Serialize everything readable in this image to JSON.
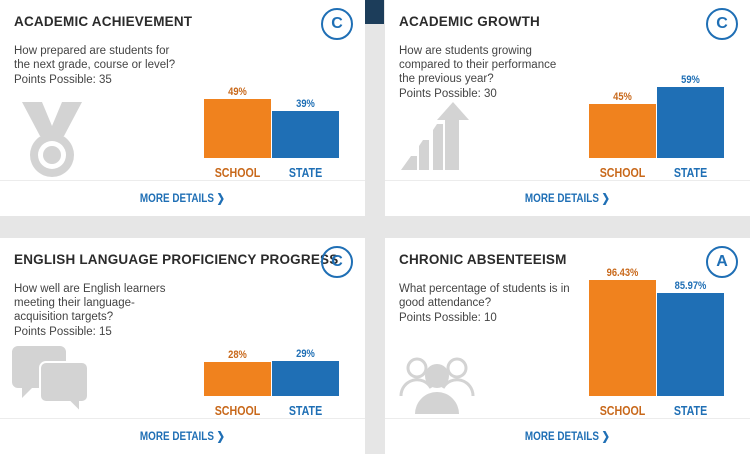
{
  "cards": [
    {
      "title": "ACADEMIC ACHIEVEMENT",
      "grade": "C",
      "question": "How prepared are students for the next grade, course or level?",
      "points": "Points Possible: 35",
      "icon": "medal-icon",
      "school_value": 49,
      "school_label": "49%",
      "state_value": 39,
      "state_label": "39%",
      "school_name": "SCHOOL",
      "state_name": "STATE",
      "more": "MORE DETAILS ❯"
    },
    {
      "title": "ACADEMIC GROWTH",
      "grade": "C",
      "question": "How are students growing compared to their performance the previous year?",
      "points": "Points Possible: 30",
      "icon": "growth-arrow-icon",
      "school_value": 45,
      "school_label": "45%",
      "state_value": 59,
      "state_label": "59%",
      "school_name": "SCHOOL",
      "state_name": "STATE",
      "more": "MORE DETAILS ❯"
    },
    {
      "title": "ENGLISH LANGUAGE PROFICIENCY PROGRESS",
      "grade": "C",
      "question": "How well are English learners meeting their language-acquisition targets?",
      "points": "Points Possible: 15",
      "icon": "speech-bubbles-icon",
      "school_value": 28,
      "school_label": "28%",
      "state_value": 29,
      "state_label": "29%",
      "school_name": "SCHOOL",
      "state_name": "STATE",
      "more": "MORE DETAILS ❯"
    },
    {
      "title": "CHRONIC ABSENTEEISM",
      "grade": "A",
      "question": "What percentage of students is in good attendance?",
      "points": "Points Possible: 10",
      "icon": "people-group-icon",
      "school_value": 96.43,
      "school_label": "96.43%",
      "state_value": 85.97,
      "state_label": "85.97%",
      "school_name": "SCHOOL",
      "state_name": "STATE",
      "more": "MORE DETAILS ❯"
    }
  ],
  "colors": {
    "school": "#f0821e",
    "state": "#1f6fb5",
    "icon": "#d3d3d3"
  }
}
